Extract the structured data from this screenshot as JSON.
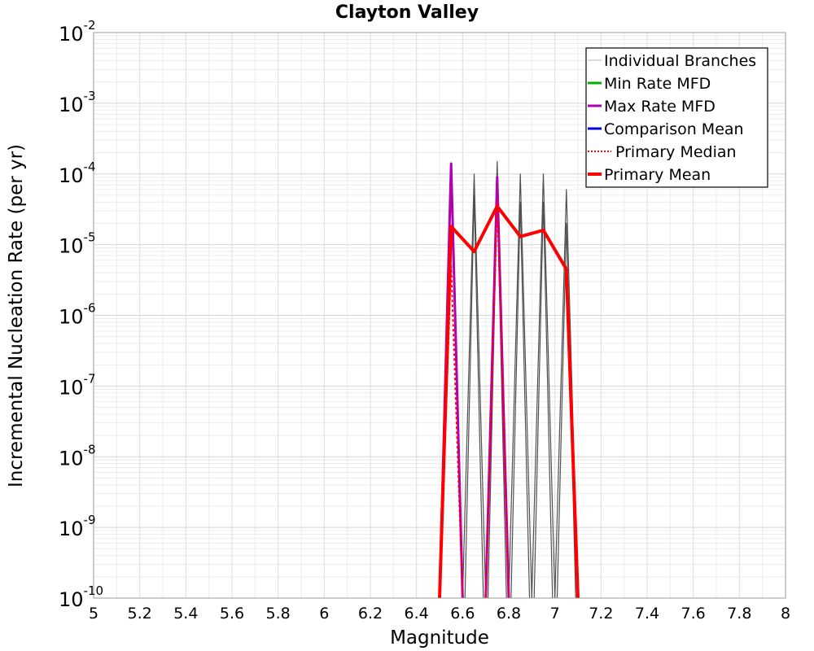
{
  "chart_data": {
    "type": "line",
    "title": "Clayton Valley",
    "xlabel": "Magnitude",
    "ylabel": "Incremental Nucleation Rate (per yr)",
    "xlim": [
      5,
      8
    ],
    "ylim_log10": [
      -10,
      -2
    ],
    "x_ticks": [
      "5",
      "5.2",
      "5.4",
      "5.6",
      "5.8",
      "6",
      "6.2",
      "6.4",
      "6.6",
      "6.8",
      "7",
      "7.2",
      "7.4",
      "7.6",
      "7.8",
      "8"
    ],
    "y_ticks": [
      {
        "base": "10",
        "exp": "-2"
      },
      {
        "base": "10",
        "exp": "-3"
      },
      {
        "base": "10",
        "exp": "-4"
      },
      {
        "base": "10",
        "exp": "-5"
      },
      {
        "base": "10",
        "exp": "-6"
      },
      {
        "base": "10",
        "exp": "-7"
      },
      {
        "base": "10",
        "exp": "-8"
      },
      {
        "base": "10",
        "exp": "-9"
      },
      {
        "base": "10",
        "exp": "-10"
      }
    ],
    "grid": true,
    "legend_position": "top-right",
    "legend": [
      {
        "label": "Individual Branches",
        "color": "#cfcfcf",
        "style": "solid"
      },
      {
        "label": "Min Rate MFD",
        "color": "#00b000",
        "style": "solid"
      },
      {
        "label": "Max Rate MFD",
        "color": "#b000b0",
        "style": "solid"
      },
      {
        "label": "Comparison Mean",
        "color": "#0000e0",
        "style": "solid"
      },
      {
        "label": "Primary Median",
        "color": "#ff0000",
        "style": "dotted"
      },
      {
        "label": "Primary Mean",
        "color": "#ff0000",
        "style": "thick"
      }
    ],
    "series": [
      {
        "name": "Individual Branches",
        "color": "#505050",
        "width": 1.2,
        "lines": [
          {
            "x": [
              6.6,
              6.65,
              6.7
            ],
            "y": [
              1e-10,
              0.0001,
              1e-10
            ]
          },
          {
            "x": [
              6.61,
              6.65,
              6.69
            ],
            "y": [
              1e-10,
              5e-05,
              1e-10
            ]
          },
          {
            "x": [
              6.7,
              6.75,
              6.8
            ],
            "y": [
              1e-10,
              0.00015,
              1e-10
            ]
          },
          {
            "x": [
              6.71,
              6.75,
              6.79
            ],
            "y": [
              1e-10,
              6e-05,
              1e-10
            ]
          },
          {
            "x": [
              6.8,
              6.85,
              6.9
            ],
            "y": [
              1e-10,
              0.0001,
              1e-10
            ]
          },
          {
            "x": [
              6.81,
              6.85,
              6.89
            ],
            "y": [
              1e-10,
              4e-05,
              1e-10
            ]
          },
          {
            "x": [
              6.9,
              6.95,
              7.0
            ],
            "y": [
              1e-10,
              0.0001,
              1e-10
            ]
          },
          {
            "x": [
              6.91,
              6.95,
              6.99
            ],
            "y": [
              1e-10,
              4e-05,
              1e-10
            ]
          },
          {
            "x": [
              7.0,
              7.05,
              7.1
            ],
            "y": [
              1e-10,
              6e-05,
              1e-10
            ]
          },
          {
            "x": [
              7.01,
              7.05,
              7.09
            ],
            "y": [
              1e-10,
              2e-05,
              1e-10
            ]
          }
        ]
      },
      {
        "name": "Max Rate MFD",
        "color": "#b000b0",
        "width": 3,
        "lines": [
          {
            "x": [
              6.5,
              6.55,
              6.6
            ],
            "y": [
              1e-10,
              0.00014,
              1e-10
            ]
          },
          {
            "x": [
              6.7,
              6.75,
              6.8
            ],
            "y": [
              1e-10,
              9e-05,
              1e-10
            ]
          }
        ]
      },
      {
        "name": "Primary Median",
        "color": "#ff0000",
        "width": 2,
        "dash": "3,3",
        "lines": [
          {
            "x": [
              6.5,
              6.55,
              6.6
            ],
            "y": [
              1e-10,
              5e-06,
              1e-10
            ]
          },
          {
            "x": [
              6.7,
              6.75,
              6.8
            ],
            "y": [
              1e-10,
              4e-05,
              1e-10
            ]
          }
        ]
      },
      {
        "name": "Primary Mean",
        "color": "#ff0000",
        "width": 4,
        "lines": [
          {
            "x": [
              6.5,
              6.55,
              6.65,
              6.75,
              6.85,
              6.95,
              7.05,
              7.1
            ],
            "y": [
              1e-10,
              1.8e-05,
              8e-06,
              3.5e-05,
              1.3e-05,
              1.6e-05,
              4.5e-06,
              1e-10
            ]
          }
        ]
      }
    ]
  }
}
